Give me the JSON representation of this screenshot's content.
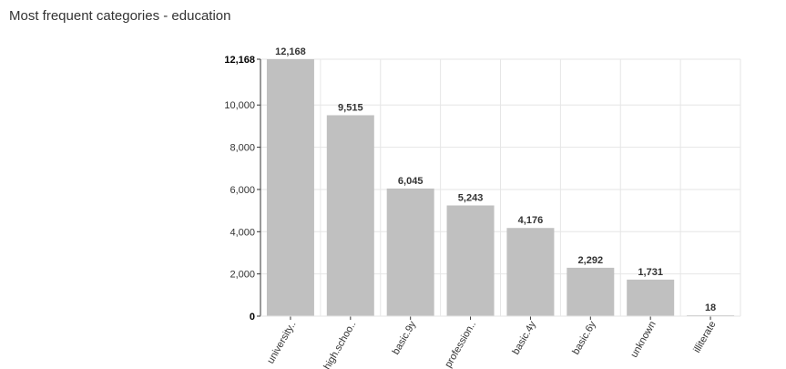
{
  "page": {
    "title": "Most frequent categories - education"
  },
  "chart_data": {
    "type": "bar",
    "title": "",
    "xlabel": "",
    "ylabel": "",
    "categories": [
      "university..",
      "high.schoo..",
      "basic.9y",
      "profession..",
      "basic.4y",
      "basic.6y",
      "unknown",
      "illiterate"
    ],
    "values": [
      12168,
      9515,
      6045,
      5243,
      4176,
      2292,
      1731,
      18
    ],
    "value_labels": [
      "12,168",
      "9,515",
      "6,045",
      "5,243",
      "4,176",
      "2,292",
      "1,731",
      "18"
    ],
    "ylim": [
      0,
      12168
    ],
    "y_ticks": [
      {
        "value": 0,
        "label": "0"
      },
      {
        "value": 2000,
        "label": "2,000"
      },
      {
        "value": 4000,
        "label": "4,000"
      },
      {
        "value": 6000,
        "label": "6,000"
      },
      {
        "value": 8000,
        "label": "8,000"
      },
      {
        "value": 10000,
        "label": "10,000"
      },
      {
        "value": 12168,
        "label": "12,168"
      }
    ],
    "grid": true,
    "bar_color": "#c0c0c0",
    "grid_color": "#e6e6e6",
    "axis_color": "#333333"
  }
}
